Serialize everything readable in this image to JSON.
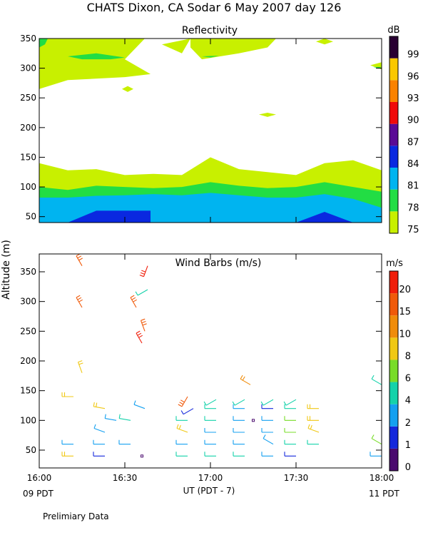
{
  "title": "CHATS Dixon, CA  Sodar    6 May 2007  day 126",
  "ylabel": "Altitude (m)",
  "xlabel": "UT  (PDT - 7)",
  "footer": "Prelimiary Data",
  "left_time_note": "09 PDT",
  "right_time_note": "11 PDT",
  "chart_data": [
    {
      "type": "heatmap",
      "title": "Reflectivity",
      "colorbar_unit": "dB",
      "ylim": [
        40,
        350
      ],
      "xlim": [
        960,
        1080
      ],
      "yticks": [
        50,
        100,
        150,
        200,
        250,
        300,
        350
      ],
      "xticks": [
        960,
        990,
        1020,
        1050,
        1080
      ],
      "levels": [
        75,
        78,
        81,
        84,
        87,
        90,
        93,
        96,
        99
      ],
      "level_colors": [
        "#c8f000",
        "#22dd44",
        "#00b4f0",
        "#0a28e0",
        "#5a0a96",
        "#f00a0a",
        "#fa8200",
        "#fac800",
        "#280032"
      ],
      "layers": [
        {
          "level": 75,
          "top": [
            [
              960,
              140
            ],
            [
              970,
              128
            ],
            [
              980,
              130
            ],
            [
              990,
              120
            ],
            [
              1000,
              122
            ],
            [
              1010,
              120
            ],
            [
              1020,
              150
            ],
            [
              1030,
              130
            ],
            [
              1040,
              125
            ],
            [
              1050,
              120
            ],
            [
              1060,
              140
            ],
            [
              1070,
              145
            ],
            [
              1080,
              128
            ]
          ]
        },
        {
          "level": 78,
          "top": [
            [
              960,
              100
            ],
            [
              970,
              95
            ],
            [
              980,
              102
            ],
            [
              990,
              100
            ],
            [
              1000,
              98
            ],
            [
              1010,
              100
            ],
            [
              1020,
              108
            ],
            [
              1030,
              102
            ],
            [
              1040,
              98
            ],
            [
              1050,
              100
            ],
            [
              1060,
              108
            ],
            [
              1070,
              100
            ],
            [
              1080,
              92
            ]
          ]
        },
        {
          "level": 81,
          "top": [
            [
              960,
              82
            ],
            [
              970,
              82
            ],
            [
              980,
              85
            ],
            [
              990,
              86
            ],
            [
              1000,
              88
            ],
            [
              1010,
              86
            ],
            [
              1020,
              90
            ],
            [
              1030,
              86
            ],
            [
              1040,
              82
            ],
            [
              1050,
              82
            ],
            [
              1060,
              88
            ],
            [
              1070,
              80
            ],
            [
              1080,
              65
            ]
          ]
        }
      ],
      "blobs": [
        {
          "level": 84,
          "points": [
            [
              970,
              40
            ],
            [
              980,
              60
            ],
            [
              999,
              60
            ],
            [
              999,
              40
            ]
          ]
        },
        {
          "level": 84,
          "points": [
            [
              1050,
              40
            ],
            [
              1060,
              58
            ],
            [
              1070,
              40
            ]
          ]
        },
        {
          "level": 75,
          "points": [
            [
              960,
              265
            ],
            [
              970,
              280
            ],
            [
              990,
              285
            ],
            [
              999,
              290
            ],
            [
              990,
              315
            ],
            [
              997,
              350
            ],
            [
              960,
              350
            ]
          ]
        },
        {
          "level": 75,
          "points": [
            [
              1003,
              340
            ],
            [
              1010,
              325
            ],
            [
              1013,
              350
            ]
          ]
        },
        {
          "level": 75,
          "points": [
            [
              1017,
              315
            ],
            [
              1030,
              325
            ],
            [
              1040,
              335
            ],
            [
              1043,
              350
            ],
            [
              1013,
              350
            ],
            [
              1013,
              335
            ]
          ]
        },
        {
          "level": 75,
          "points": [
            [
              1057,
              345
            ],
            [
              1060,
              340
            ],
            [
              1063,
              345
            ],
            [
              1060,
              350
            ]
          ]
        },
        {
          "level": 75,
          "points": [
            [
              1076,
              305
            ],
            [
              1080,
              298
            ],
            [
              1080,
              310
            ]
          ]
        },
        {
          "level": 75,
          "points": [
            [
              989,
              265
            ],
            [
              991,
              260
            ],
            [
              993,
              265
            ],
            [
              991,
              270
            ]
          ]
        },
        {
          "level": 75,
          "points": [
            [
              1037,
              222
            ],
            [
              1040,
              218
            ],
            [
              1043,
              222
            ],
            [
              1040,
              225
            ]
          ]
        },
        {
          "level": 78,
          "points": [
            [
              960,
              335
            ],
            [
              962,
              340
            ],
            [
              963,
              350
            ],
            [
              960,
              350
            ]
          ]
        },
        {
          "level": 78,
          "points": [
            [
              970,
              320
            ],
            [
              980,
              325
            ],
            [
              990,
              318
            ],
            [
              985,
              315
            ],
            [
              975,
              315
            ]
          ]
        },
        {
          "level": 78,
          "points": [
            [
              1017,
              320
            ],
            [
              1023,
              321
            ],
            [
              1020,
              318
            ]
          ]
        },
        {
          "level": 78,
          "points": [
            [
              1077,
              302
            ],
            [
              1080,
              302
            ],
            [
              1079,
              300
            ]
          ]
        }
      ]
    },
    {
      "type": "scatter",
      "title": "Wind Barbs (m/s)",
      "colorbar_unit": "m/s",
      "ylim": [
        20,
        380
      ],
      "xlim": [
        960,
        1080
      ],
      "yticks": [
        50,
        100,
        150,
        200,
        250,
        300,
        350
      ],
      "xticks": [
        960,
        990,
        1020,
        1050,
        1080
      ],
      "xticklabels": [
        "16:00",
        "16:30",
        "17:00",
        "17:30",
        "18:00"
      ],
      "color_levels": [
        0,
        1,
        2,
        4,
        6,
        8,
        10,
        15,
        20
      ],
      "color_scale": [
        "#4a0a6e",
        "#1428dc",
        "#14a0f0",
        "#14d2aa",
        "#78dc28",
        "#f0c814",
        "#f08c0a",
        "#f05a0a",
        "#f01e0a"
      ],
      "barbs": [
        {
          "t": 972,
          "z": 40,
          "speed": 8,
          "dir": 270
        },
        {
          "t": 972,
          "z": 60,
          "speed": 3,
          "dir": 270
        },
        {
          "t": 972,
          "z": 140,
          "speed": 9,
          "dir": 270
        },
        {
          "t": 975,
          "z": 180,
          "speed": 9,
          "dir": 340
        },
        {
          "t": 975,
          "z": 290,
          "speed": 15,
          "dir": 330
        },
        {
          "t": 975,
          "z": 360,
          "speed": 15,
          "dir": 330
        },
        {
          "t": 983,
          "z": 40,
          "speed": 1,
          "dir": 270
        },
        {
          "t": 983,
          "z": 60,
          "speed": 2,
          "dir": 270
        },
        {
          "t": 983,
          "z": 80,
          "speed": 3,
          "dir": 290
        },
        {
          "t": 983,
          "z": 120,
          "speed": 8,
          "dir": 280
        },
        {
          "t": 987,
          "z": 100,
          "speed": 3,
          "dir": 280
        },
        {
          "t": 992,
          "z": 60,
          "speed": 3,
          "dir": 270
        },
        {
          "t": 992,
          "z": 100,
          "speed": 4,
          "dir": 280
        },
        {
          "t": 994,
          "z": 290,
          "speed": 15,
          "dir": 330
        },
        {
          "t": 996,
          "z": 40,
          "speed": 0.5,
          "dir": 0
        },
        {
          "t": 997,
          "z": 120,
          "speed": 3,
          "dir": 290
        },
        {
          "t": 997,
          "z": 250,
          "speed": 15,
          "dir": 340
        },
        {
          "t": 996,
          "z": 230,
          "speed": 20,
          "dir": 330
        },
        {
          "t": 998,
          "z": 320,
          "speed": 5,
          "dir": 240
        },
        {
          "t": 998,
          "z": 360,
          "speed": 20,
          "dir": 200
        },
        {
          "t": 1012,
          "z": 40,
          "speed": 5,
          "dir": 270
        },
        {
          "t": 1012,
          "z": 60,
          "speed": 3,
          "dir": 270
        },
        {
          "t": 1012,
          "z": 80,
          "speed": 8,
          "dir": 290
        },
        {
          "t": 1012,
          "z": 100,
          "speed": 4,
          "dir": 270
        },
        {
          "t": 1014,
          "z": 120,
          "speed": 1,
          "dir": 240
        },
        {
          "t": 1012,
          "z": 140,
          "speed": 15,
          "dir": 210
        },
        {
          "t": 1022,
          "z": 40,
          "speed": 5,
          "dir": 270
        },
        {
          "t": 1022,
          "z": 60,
          "speed": 3,
          "dir": 270
        },
        {
          "t": 1022,
          "z": 80,
          "speed": 3,
          "dir": 270
        },
        {
          "t": 1022,
          "z": 100,
          "speed": 4,
          "dir": 270
        },
        {
          "t": 1022,
          "z": 120,
          "speed": 5,
          "dir": 270
        },
        {
          "t": 1022,
          "z": 135,
          "speed": 4,
          "dir": 240
        },
        {
          "t": 1032,
          "z": 40,
          "speed": 4,
          "dir": 270
        },
        {
          "t": 1032,
          "z": 60,
          "speed": 3,
          "dir": 270
        },
        {
          "t": 1032,
          "z": 80,
          "speed": 3,
          "dir": 270
        },
        {
          "t": 1032,
          "z": 100,
          "speed": 3,
          "dir": 270
        },
        {
          "t": 1032,
          "z": 120,
          "speed": 3,
          "dir": 270
        },
        {
          "t": 1032,
          "z": 135,
          "speed": 5,
          "dir": 240
        },
        {
          "t": 1035,
          "z": 100,
          "speed": 0.5,
          "dir": 0
        },
        {
          "t": 1034,
          "z": 160,
          "speed": 10,
          "dir": 300
        },
        {
          "t": 1042,
          "z": 40,
          "speed": 3,
          "dir": 270
        },
        {
          "t": 1042,
          "z": 60,
          "speed": 2,
          "dir": 300
        },
        {
          "t": 1042,
          "z": 80,
          "speed": 3,
          "dir": 270
        },
        {
          "t": 1042,
          "z": 100,
          "speed": 3,
          "dir": 270
        },
        {
          "t": 1042,
          "z": 120,
          "speed": 1,
          "dir": 270
        },
        {
          "t": 1042,
          "z": 135,
          "speed": 4,
          "dir": 240
        },
        {
          "t": 1050,
          "z": 40,
          "speed": 1,
          "dir": 270
        },
        {
          "t": 1050,
          "z": 60,
          "speed": 5,
          "dir": 270
        },
        {
          "t": 1050,
          "z": 80,
          "speed": 6,
          "dir": 270
        },
        {
          "t": 1050,
          "z": 100,
          "speed": 6,
          "dir": 270
        },
        {
          "t": 1050,
          "z": 120,
          "speed": 5,
          "dir": 270
        },
        {
          "t": 1050,
          "z": 135,
          "speed": 4,
          "dir": 240
        },
        {
          "t": 1058,
          "z": 60,
          "speed": 4,
          "dir": 270
        },
        {
          "t": 1058,
          "z": 80,
          "speed": 8,
          "dir": 290
        },
        {
          "t": 1058,
          "z": 100,
          "speed": 8,
          "dir": 270
        },
        {
          "t": 1058,
          "z": 120,
          "speed": 8,
          "dir": 270
        },
        {
          "t": 1080,
          "z": 40,
          "speed": 3,
          "dir": 270
        },
        {
          "t": 1080,
          "z": 60,
          "speed": 6,
          "dir": 300
        },
        {
          "t": 1080,
          "z": 160,
          "speed": 4,
          "dir": 300
        }
      ]
    }
  ]
}
